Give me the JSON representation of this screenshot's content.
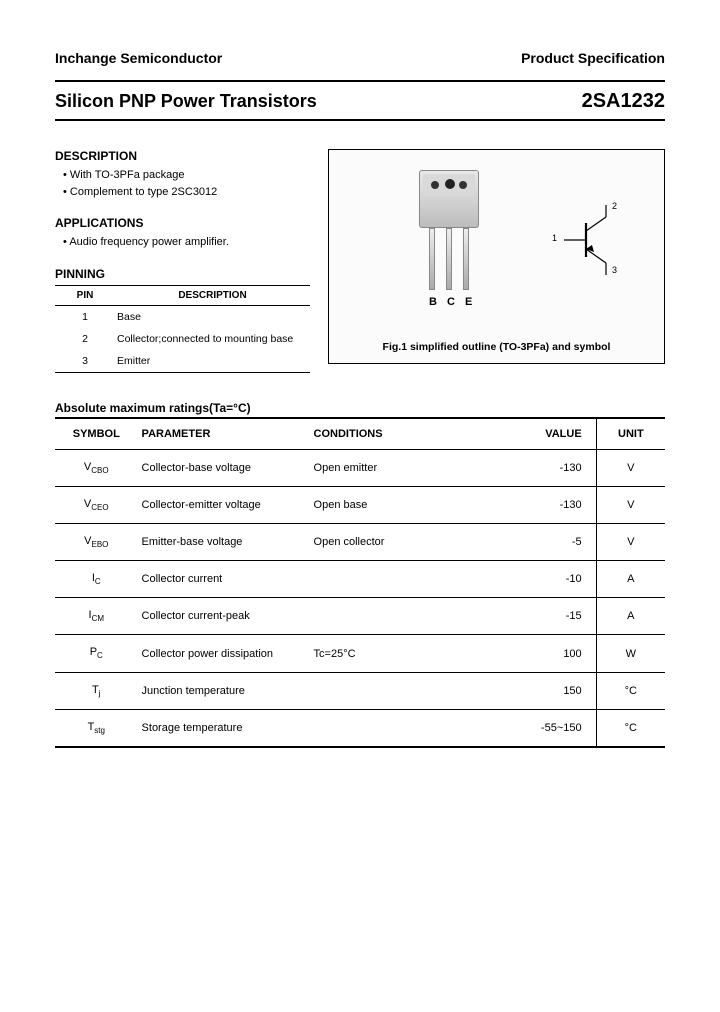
{
  "header": {
    "company": "Inchange Semiconductor",
    "doc_type": "Product Specification"
  },
  "title": {
    "left": "Silicon PNP Power Transistors",
    "right": "2SA1232"
  },
  "description": {
    "heading": "DESCRIPTION",
    "items": [
      "With TO-3PFa package",
      "Complement to type 2SC3012"
    ]
  },
  "applications": {
    "heading": "APPLICATIONS",
    "items": [
      "Audio frequency power amplifier."
    ]
  },
  "pinning": {
    "heading": "PINNING",
    "col1": "PIN",
    "col2": "DESCRIPTION",
    "rows": [
      {
        "pin": "1",
        "desc": "Base"
      },
      {
        "pin": "2",
        "desc": "Collector;connected to mounting base"
      },
      {
        "pin": "3",
        "desc": "Emitter"
      }
    ]
  },
  "figure": {
    "pin_labels": [
      "B",
      "C",
      "E"
    ],
    "sym_labels": [
      "1",
      "2",
      "3"
    ],
    "caption": "Fig.1 simplified outline (TO-3PFa) and symbol"
  },
  "ratings": {
    "heading": "Absolute maximum ratings(Ta=°C)",
    "columns": {
      "symbol": "SYMBOL",
      "parameter": "PARAMETER",
      "conditions": "CONDITIONS",
      "value": "VALUE",
      "unit": "UNIT"
    },
    "rows": [
      {
        "sym_main": "V",
        "sym_sub": "CBO",
        "param": "Collector-base voltage",
        "cond": "Open emitter",
        "val": "-130",
        "unit": "V"
      },
      {
        "sym_main": "V",
        "sym_sub": "CEO",
        "param": "Collector-emitter voltage",
        "cond": "Open base",
        "val": "-130",
        "unit": "V"
      },
      {
        "sym_main": "V",
        "sym_sub": "EBO",
        "param": "Emitter-base voltage",
        "cond": "Open collector",
        "val": "-5",
        "unit": "V"
      },
      {
        "sym_main": "I",
        "sym_sub": "C",
        "param": "Collector current",
        "cond": "",
        "val": "-10",
        "unit": "A"
      },
      {
        "sym_main": "I",
        "sym_sub": "CM",
        "param": "Collector current-peak",
        "cond": "",
        "val": "-15",
        "unit": "A"
      },
      {
        "sym_main": "P",
        "sym_sub": "C",
        "param": "Collector power dissipation",
        "cond": "Tc=25°C",
        "val": "100",
        "unit": "W"
      },
      {
        "sym_main": "T",
        "sym_sub": "j",
        "param": "Junction temperature",
        "cond": "",
        "val": "150",
        "unit": "°C"
      },
      {
        "sym_main": "T",
        "sym_sub": "stg",
        "param": "Storage temperature",
        "cond": "",
        "val": "-55~150",
        "unit": "°C"
      }
    ]
  }
}
